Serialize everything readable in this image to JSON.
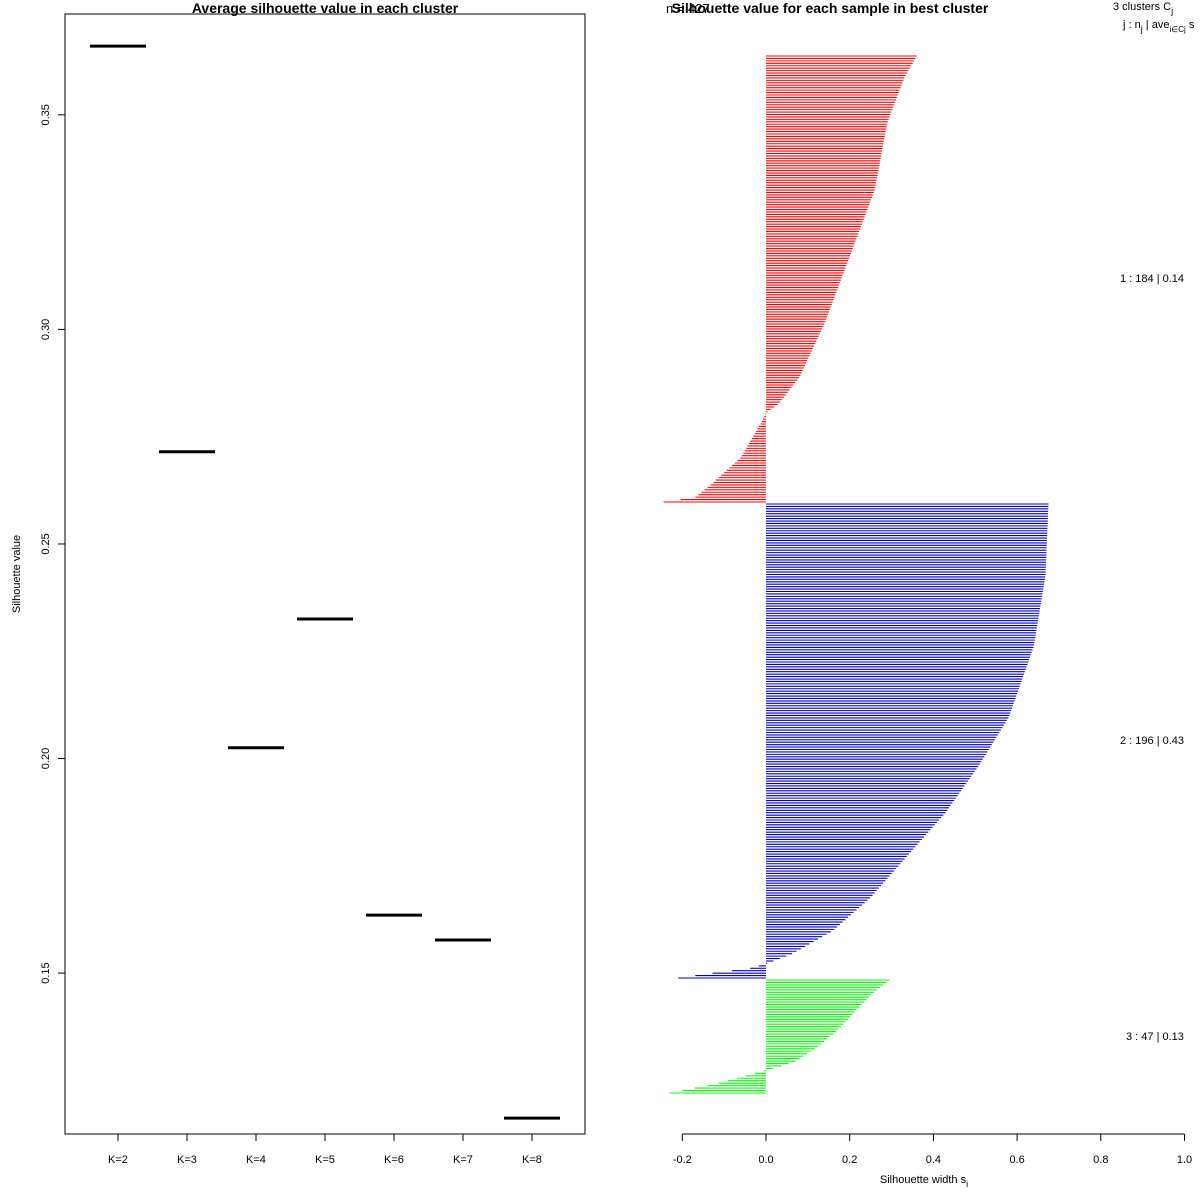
{
  "chart_data": [
    {
      "type": "scatter",
      "marker": "horizontal-segment",
      "title": "Average silhouette value in each cluster",
      "xlabel": "",
      "ylabel": "Silhouette value",
      "categories": [
        "K=2",
        "K=3",
        "K=4",
        "K=5",
        "K=6",
        "K=7",
        "K=8"
      ],
      "values": [
        0.366,
        0.2715,
        0.2025,
        0.2325,
        0.1635,
        0.1577,
        0.1162
      ],
      "ylim": [
        0.1125,
        0.3735
      ],
      "yticks": [
        "0.15",
        "0.20",
        "0.25",
        "0.30",
        "0.35"
      ],
      "grid": false,
      "line_color": "#000000"
    },
    {
      "type": "bar",
      "orientation": "horizontal",
      "title": "Silhouette value for each sample in best cluster",
      "overlapped_text": "n = 427",
      "xlabel": "Silhouette width s",
      "xlabel_subscript": "i",
      "xlim": [
        -0.2,
        1.0
      ],
      "xticks": [
        "-0.2",
        "0.0",
        "0.2",
        "0.4",
        "0.6",
        "0.8",
        "1.0"
      ],
      "legend_header": {
        "line1": "3  clusters  C",
        "line1_subscript": "j",
        "line2_j": "j :  n",
        "line2_nsub": "j",
        "line2_ave": " | ave",
        "line2_avesub": "i∈Cj",
        "line2_s": "  s"
      },
      "clusters": [
        {
          "label": "1 :  184  |  0.14",
          "n": 184,
          "avg": 0.14,
          "color": "#ff0000",
          "profile": [
            [
              0,
              0.36
            ],
            [
              0.05,
              0.33
            ],
            [
              0.15,
              0.29
            ],
            [
              0.3,
              0.26
            ],
            [
              0.45,
              0.2
            ],
            [
              0.6,
              0.14
            ],
            [
              0.72,
              0.08
            ],
            [
              0.78,
              0.03
            ],
            [
              0.8,
              0.0
            ],
            [
              0.82,
              -0.01
            ],
            [
              0.9,
              -0.06
            ],
            [
              0.96,
              -0.13
            ],
            [
              0.99,
              -0.17
            ],
            [
              1.0,
              -0.245
            ]
          ]
        },
        {
          "label": "2 :  196  |  0.43",
          "n": 196,
          "avg": 0.43,
          "color": "#0000cc",
          "profile": [
            [
              0,
              0.675
            ],
            [
              0.15,
              0.668
            ],
            [
              0.3,
              0.64
            ],
            [
              0.45,
              0.58
            ],
            [
              0.55,
              0.51
            ],
            [
              0.65,
              0.43
            ],
            [
              0.75,
              0.33
            ],
            [
              0.83,
              0.25
            ],
            [
              0.9,
              0.16
            ],
            [
              0.95,
              0.06
            ],
            [
              0.97,
              0.0
            ],
            [
              0.98,
              -0.04
            ],
            [
              0.99,
              -0.13
            ],
            [
              1.0,
              -0.21
            ]
          ]
        },
        {
          "label": "3 :  47  |  0.13",
          "n": 47,
          "avg": 0.13,
          "color": "#00ff00",
          "profile": [
            [
              0,
              0.295
            ],
            [
              0.1,
              0.26
            ],
            [
              0.25,
              0.22
            ],
            [
              0.45,
              0.17
            ],
            [
              0.6,
              0.12
            ],
            [
              0.72,
              0.07
            ],
            [
              0.78,
              0.02
            ],
            [
              0.8,
              0.0
            ],
            [
              0.85,
              -0.05
            ],
            [
              0.92,
              -0.12
            ],
            [
              1.0,
              -0.23
            ]
          ]
        }
      ]
    }
  ]
}
